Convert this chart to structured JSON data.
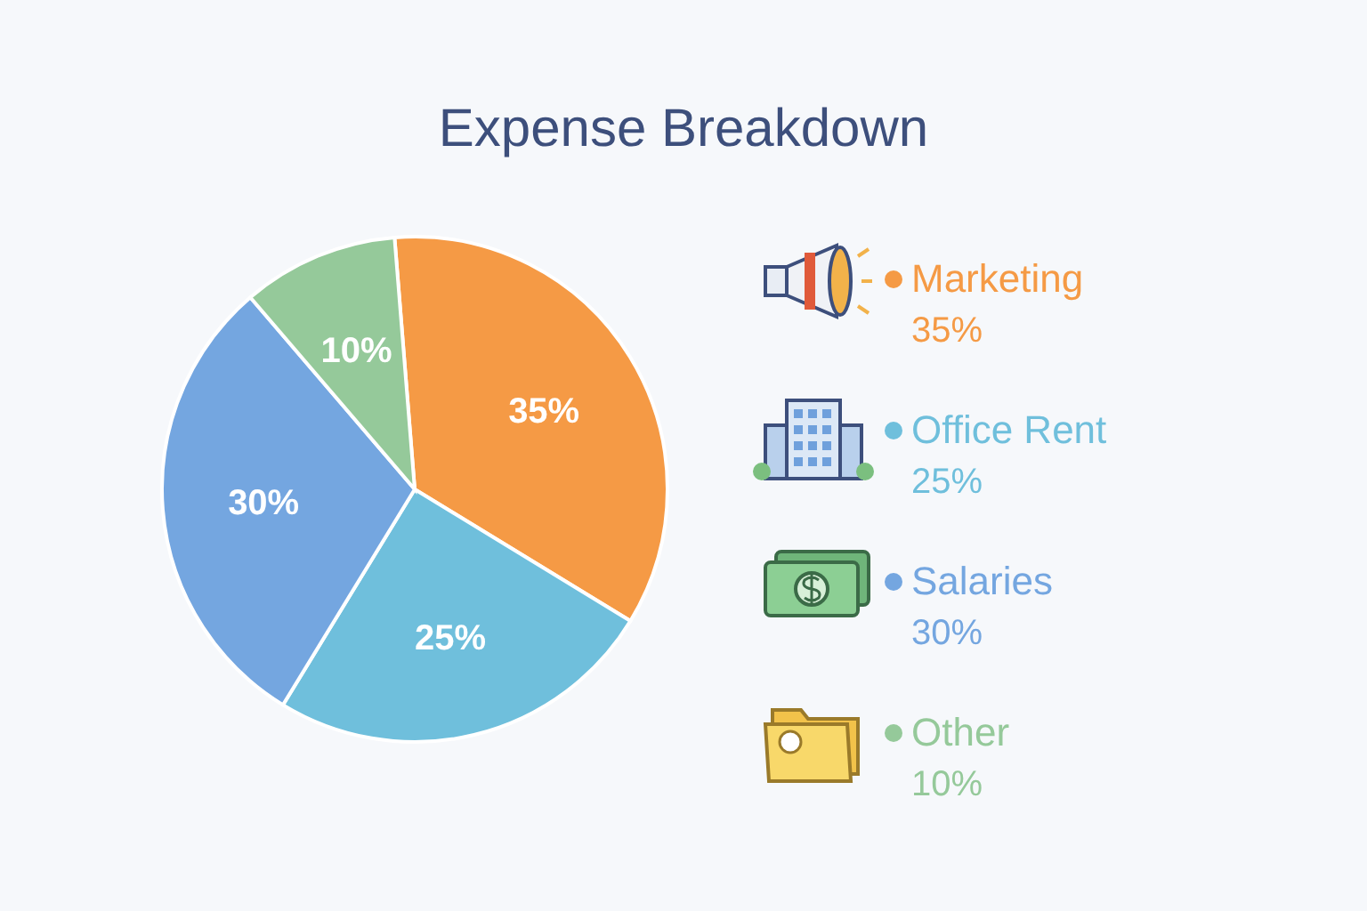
{
  "chart_data": {
    "type": "pie",
    "title": "Expense Breakdown",
    "categories": [
      "Marketing",
      "Office Rent",
      "Salaries",
      "Other"
    ],
    "values": [
      35,
      25,
      30,
      10
    ],
    "colors": [
      "#f59a45",
      "#6fbfdc",
      "#74a6e0",
      "#95c99a"
    ],
    "value_labels": [
      "35%",
      "25%",
      "30%",
      "10%"
    ],
    "legend": "right"
  }
}
